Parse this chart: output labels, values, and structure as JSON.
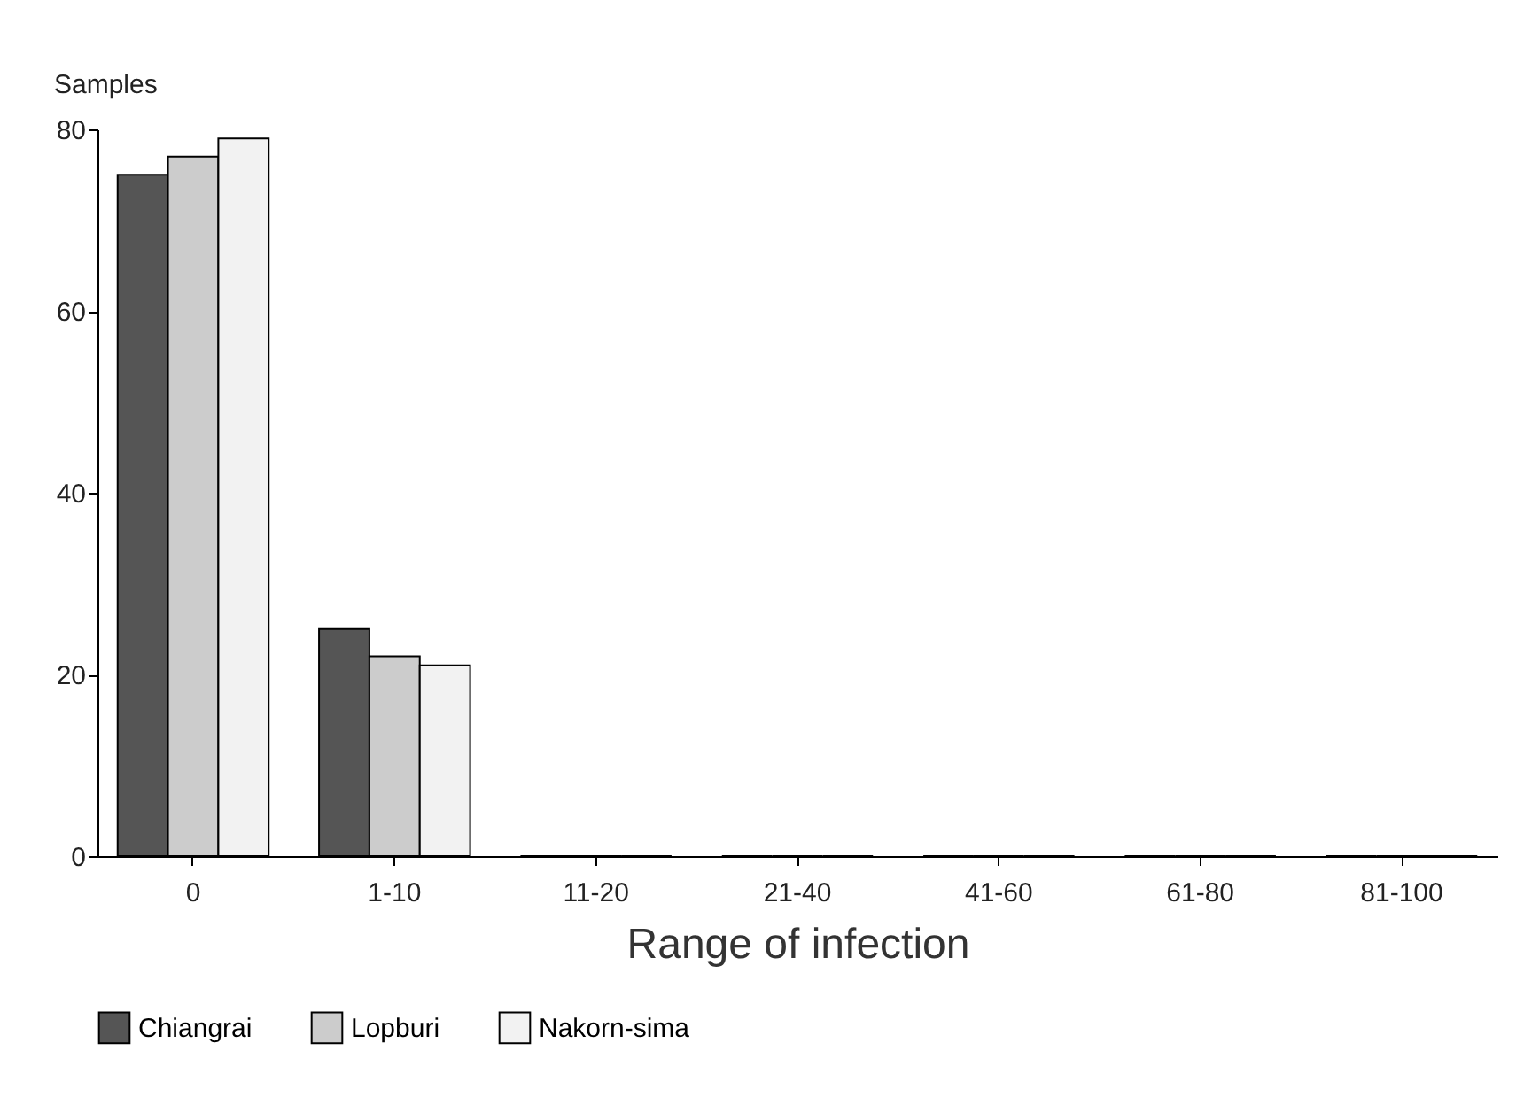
{
  "chart_data": {
    "type": "bar",
    "ylabel": "Samples",
    "xlabel": "Range of infection",
    "categories": [
      "0",
      "1-10",
      "11-20",
      "21-40",
      "41-60",
      "61-80",
      "81-100"
    ],
    "series": [
      {
        "name": "Chiangrai",
        "color": "#555555",
        "values": [
          75,
          25,
          0,
          0,
          0,
          0,
          0
        ]
      },
      {
        "name": "Lopburi",
        "color": "#cccccc",
        "values": [
          77,
          22,
          0,
          0,
          0,
          0,
          0
        ]
      },
      {
        "name": "Nakorn-sima",
        "color": "#f2f2f2",
        "values": [
          79,
          21,
          0,
          0,
          0,
          0,
          0
        ]
      }
    ],
    "ylim": [
      0,
      80
    ],
    "yticks": [
      0,
      20,
      40,
      60,
      80
    ],
    "grid": false,
    "legend": "bottom"
  }
}
